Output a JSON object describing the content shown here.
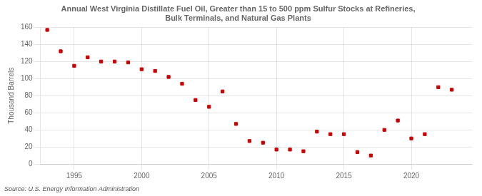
{
  "chart_data": {
    "type": "scatter",
    "title": "Annual West Virginia Distillate Fuel Oil, Greater than 15 to 500 ppm Sulfur Stocks at Refineries,\nBulk Terminals, and Natural Gas Plants",
    "ylabel": "Thousand Barrels",
    "source": "Source: U.S. Energy Information Administration",
    "x": [
      1993,
      1994,
      1995,
      1996,
      1997,
      1998,
      1999,
      2000,
      2001,
      2002,
      2003,
      2004,
      2005,
      2006,
      2007,
      2008,
      2009,
      2010,
      2011,
      2012,
      2013,
      2014,
      2015,
      2016,
      2017,
      2018,
      2019,
      2020,
      2021,
      2022,
      2023
    ],
    "values": [
      157,
      132,
      115,
      125,
      120,
      120,
      119,
      111,
      109,
      102,
      94,
      75,
      67,
      85,
      47,
      27,
      25,
      17,
      17,
      15,
      38,
      35,
      35,
      14,
      10,
      40,
      51,
      30,
      35,
      90,
      87
    ],
    "color": "#cc0000",
    "marker": "square",
    "xlim": [
      1992.5,
      2024.5
    ],
    "ylim": [
      0,
      160
    ],
    "xticks": [
      1995,
      2000,
      2005,
      2010,
      2015,
      2020
    ],
    "yticks": [
      0,
      20,
      40,
      60,
      80,
      100,
      120,
      140,
      160
    ],
    "grid": true
  }
}
